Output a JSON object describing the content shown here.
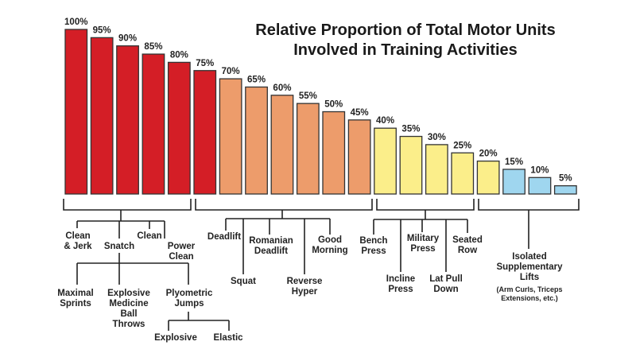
{
  "chart_data": {
    "type": "bar",
    "title": "Relative Proportion of Total Motor Units Involved in Training Activities",
    "title_lines": [
      "Relative Proportion of Total Motor Units",
      "Involved in Training Activities"
    ],
    "xlabel": "",
    "ylabel": "",
    "ylim": [
      0,
      100
    ],
    "grid": false,
    "values": [
      100,
      95,
      90,
      85,
      80,
      75,
      70,
      65,
      60,
      55,
      50,
      45,
      40,
      35,
      30,
      25,
      20,
      15,
      10,
      5
    ],
    "value_labels": [
      "100%",
      "95%",
      "90%",
      "85%",
      "80%",
      "75%",
      "70%",
      "65%",
      "60%",
      "55%",
      "50%",
      "45%",
      "40%",
      "35%",
      "30%",
      "25%",
      "20%",
      "15%",
      "10%",
      "5%"
    ],
    "groups": [
      {
        "start": 0,
        "end": 5,
        "color": "#d41e26"
      },
      {
        "start": 6,
        "end": 11,
        "color": "#ed9c6b"
      },
      {
        "start": 12,
        "end": 16,
        "color": "#fbee8a"
      },
      {
        "start": 17,
        "end": 19,
        "color": "#9fd6ef"
      }
    ],
    "activities": {
      "clean_jerk": [
        "Clean",
        "& Jerk"
      ],
      "snatch": [
        "Snatch"
      ],
      "clean": [
        "Clean"
      ],
      "power_clean": [
        "Power",
        "Clean"
      ],
      "maximal_sprints": [
        "Maximal",
        "Sprints"
      ],
      "explosive_medicine_ball": [
        "Explosive",
        "Medicine",
        "Ball",
        "Throws"
      ],
      "plyometric_jumps": [
        "Plyometric",
        "Jumps"
      ],
      "explosive": [
        "Explosive"
      ],
      "elastic": [
        "Elastic"
      ],
      "deadlift": [
        "Deadlift"
      ],
      "squat": [
        "Squat"
      ],
      "romanian_deadlift": [
        "Romanian",
        "Deadlift"
      ],
      "reverse_hyper": [
        "Reverse",
        "Hyper"
      ],
      "good_morning": [
        "Good",
        "Morning"
      ],
      "bench_press": [
        "Bench",
        "Press"
      ],
      "incline_press": [
        "Incline",
        "Press"
      ],
      "military_press": [
        "Military",
        "Press"
      ],
      "lat_pull_down": [
        "Lat Pull",
        "Down"
      ],
      "seated_row": [
        "Seated",
        "Row"
      ],
      "isolated_lifts": [
        "Isolated",
        "Supplementary",
        "Lifts"
      ],
      "isolated_examples": [
        "(Arm Curls, Triceps",
        "Extensions, etc.)"
      ]
    }
  }
}
